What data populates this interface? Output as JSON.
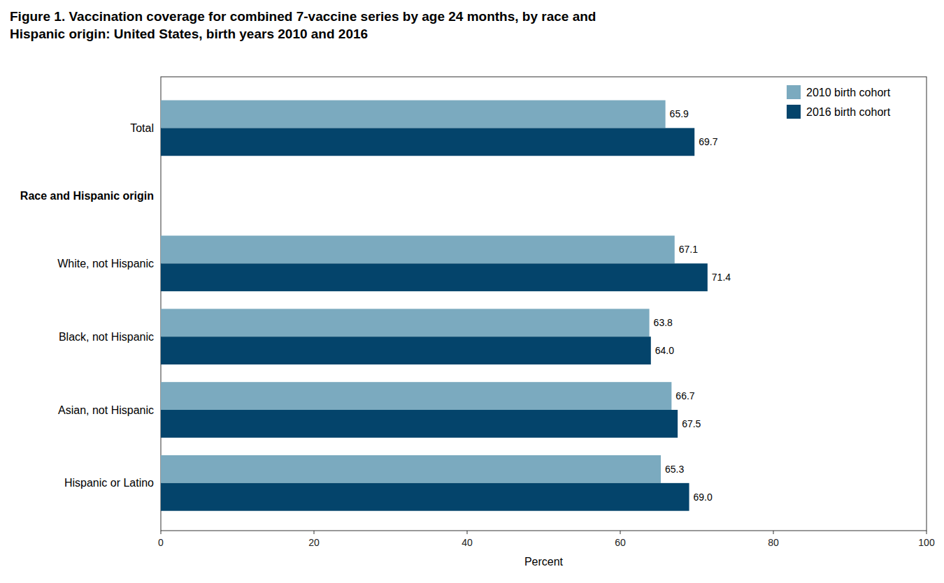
{
  "chart_data": {
    "type": "bar",
    "orientation": "horizontal",
    "title": "Figure 1. Vaccination coverage for combined 7-vaccine series by age 24 months, by race and\nHispanic origin: United States, birth years 2010 and 2016",
    "categories": [
      "Total",
      "White, not Hispanic",
      "Black, not Hispanic",
      "Asian, not Hispanic",
      "Hispanic or Latino"
    ],
    "series": [
      {
        "name": "2010 birth cohort",
        "color": "#7BAABF",
        "values": [
          65.9,
          67.1,
          63.8,
          66.7,
          65.3
        ],
        "value_labels": [
          "65.9",
          "67.1",
          "63.8",
          "66.7",
          "65.3"
        ]
      },
      {
        "name": "2016 birth cohort",
        "color": "#04446B",
        "values": [
          69.7,
          71.4,
          64.0,
          67.5,
          69.0
        ],
        "value_labels": [
          "69.7",
          "71.4",
          "64.0",
          "67.5",
          "69.0"
        ]
      }
    ],
    "xlabel": "Percent",
    "xlim": [
      0,
      100
    ],
    "xticks": [
      0,
      20,
      40,
      60,
      80,
      100
    ],
    "annotations": [
      "Race and Hispanic origin"
    ],
    "data_labels": true,
    "legend": "upper right",
    "grid": false
  }
}
